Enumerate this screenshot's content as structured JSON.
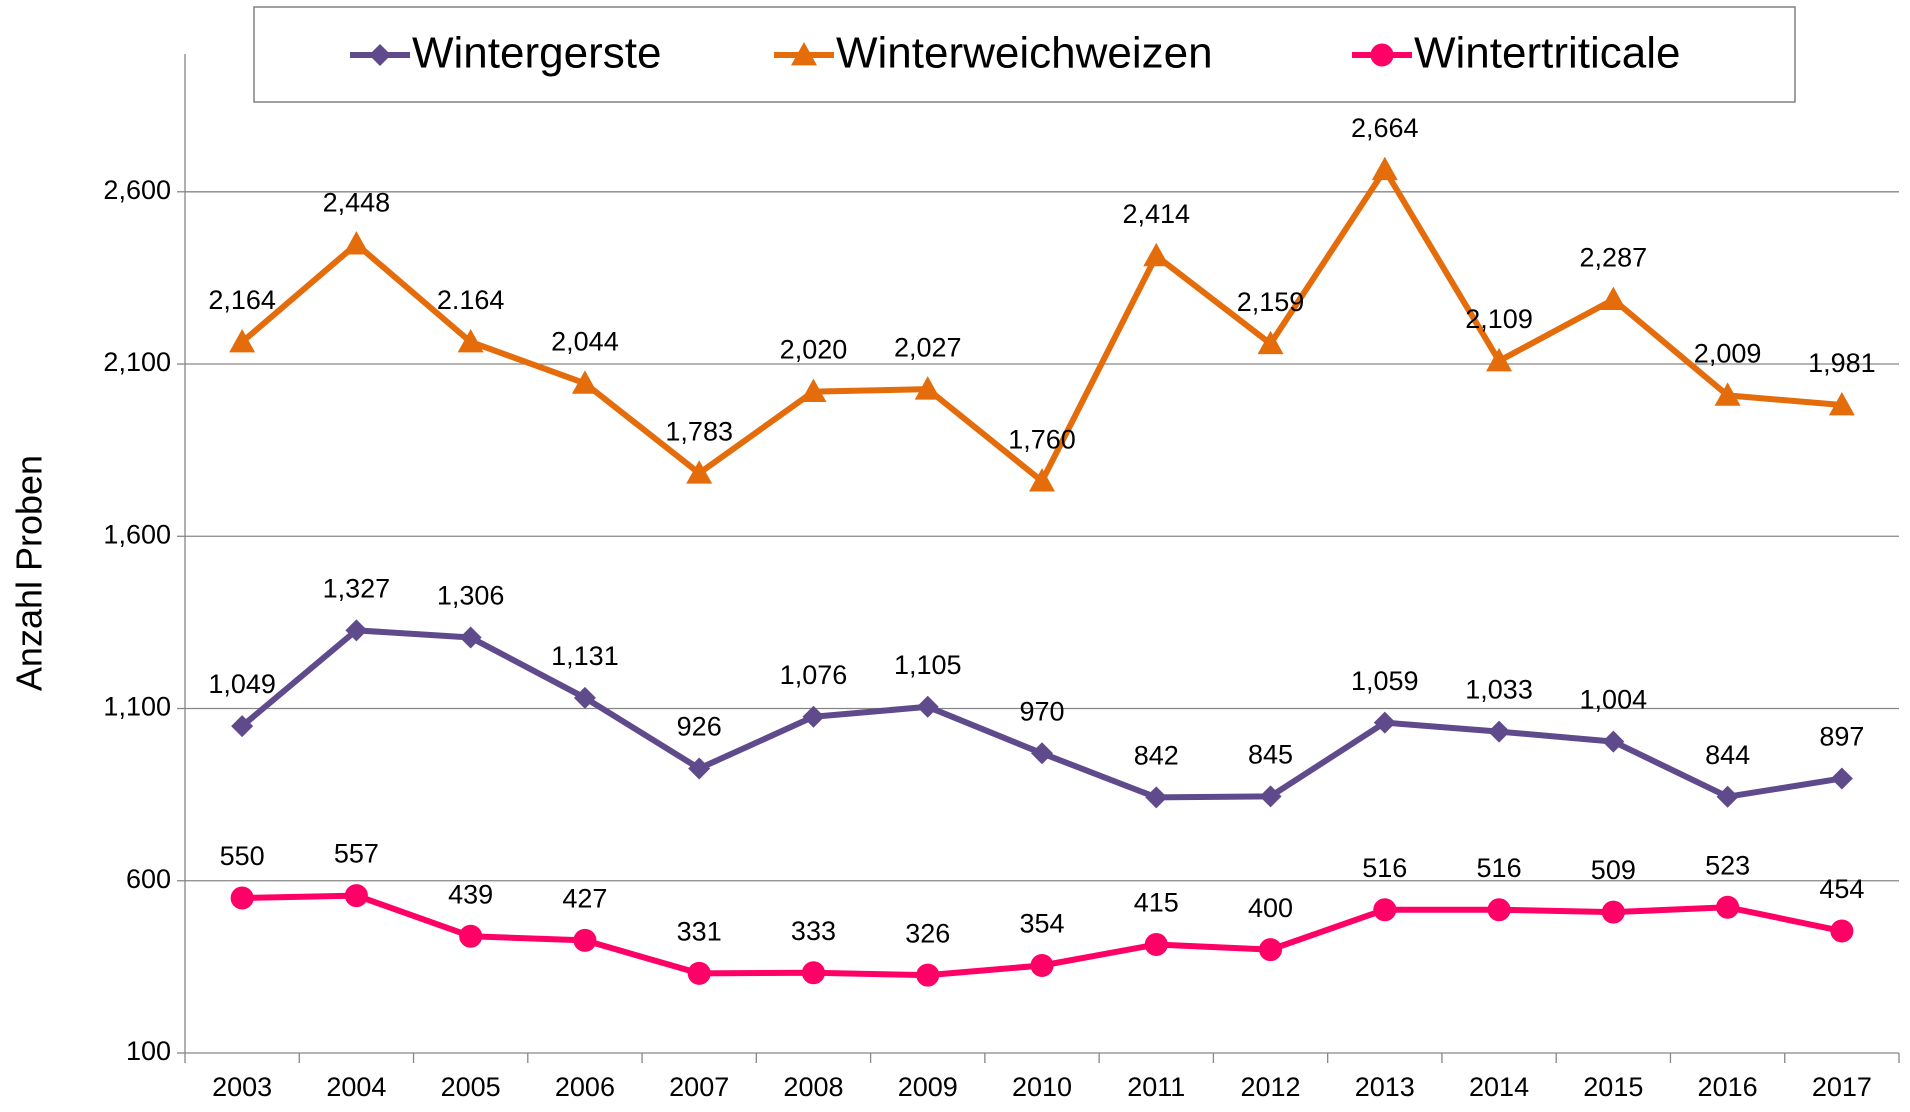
{
  "chart_data": {
    "type": "line",
    "y_label": "Anzahl Proben",
    "categories": [
      "2003",
      "2004",
      "2005",
      "2006",
      "2007",
      "2008",
      "2009",
      "2010",
      "2011",
      "2012",
      "2013",
      "2014",
      "2015",
      "2016",
      "2017"
    ],
    "series": [
      {
        "name": "Wintergerste",
        "color": "#5f4b8b",
        "marker": "diamond",
        "values": [
          1049,
          1327,
          1306,
          1131,
          926,
          1076,
          1105,
          970,
          842,
          845,
          1059,
          1033,
          1004,
          844,
          897
        ],
        "value_labels": [
          "1,049",
          "1,327",
          "1,306",
          "1,131",
          "926",
          "1,076",
          "1,105",
          "970",
          "842",
          "845",
          "1,059",
          "1,033",
          "1,004",
          "844",
          "897"
        ]
      },
      {
        "name": "Winterweichweizen",
        "color": "#e46c0a",
        "marker": "triangle",
        "values": [
          2164,
          2448,
          2164,
          2044,
          1783,
          2020,
          2027,
          1760,
          2414,
          2159,
          2664,
          2109,
          2287,
          2009,
          1981
        ],
        "value_labels": [
          "2,164",
          "2,448",
          "2.164",
          "2,044",
          "1,783",
          "2,020",
          "2,027",
          "1,760",
          "2,414",
          "2,159",
          "2,664",
          "2,109",
          "2,287",
          "2,009",
          "1,981"
        ]
      },
      {
        "name": "Wintertriticale",
        "color": "#ff0066",
        "marker": "circle",
        "values": [
          550,
          557,
          439,
          427,
          331,
          333,
          326,
          354,
          415,
          400,
          516,
          516,
          509,
          523,
          454
        ]
      }
    ],
    "ylim": [
      100,
      3000
    ],
    "yticks": [
      100,
      600,
      {
        "value": 1100,
        "label": "1,100"
      },
      {
        "value": 1600,
        "label": "1,600"
      },
      {
        "value": 2100,
        "label": "2,100"
      },
      {
        "value": 2600,
        "label": "2,600"
      }
    ],
    "grid": true,
    "legend": "top"
  }
}
